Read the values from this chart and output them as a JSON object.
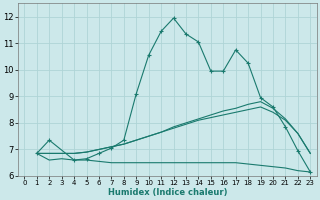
{
  "xlabel": "Humidex (Indice chaleur)",
  "xlim": [
    -0.5,
    23.5
  ],
  "ylim": [
    6.0,
    12.5
  ],
  "yticks": [
    6,
    7,
    8,
    9,
    10,
    11,
    12
  ],
  "xticks": [
    0,
    1,
    2,
    3,
    4,
    5,
    6,
    7,
    8,
    9,
    10,
    11,
    12,
    13,
    14,
    15,
    16,
    17,
    18,
    19,
    20,
    21,
    22,
    23
  ],
  "bg_color": "#cce8ea",
  "grid_color": "#afd4d6",
  "line_color": "#1a7a6e",
  "lines": [
    {
      "x": [
        1,
        2,
        4,
        5,
        6,
        7,
        8,
        9,
        10,
        11,
        12,
        13,
        14,
        15,
        16,
        17,
        18,
        19,
        20,
        21,
        22,
        23
      ],
      "y": [
        6.85,
        7.35,
        6.6,
        6.65,
        6.85,
        7.05,
        7.35,
        9.1,
        10.55,
        11.45,
        11.95,
        11.35,
        11.05,
        9.95,
        9.95,
        10.75,
        10.25,
        8.95,
        8.6,
        7.85,
        6.95,
        6.15
      ],
      "marker": "+",
      "markersize": 3,
      "linestyle": "-"
    },
    {
      "x": [
        1,
        4,
        5,
        6,
        7,
        8,
        9,
        10,
        11,
        12,
        13,
        14,
        15,
        16,
        17,
        18,
        19,
        20,
        21,
        22,
        23
      ],
      "y": [
        6.85,
        6.85,
        6.9,
        7.0,
        7.1,
        7.2,
        7.35,
        7.5,
        7.65,
        7.85,
        8.0,
        8.15,
        8.3,
        8.45,
        8.55,
        8.7,
        8.8,
        8.55,
        8.15,
        7.6,
        6.85
      ],
      "marker": null,
      "markersize": 0,
      "linestyle": "-"
    },
    {
      "x": [
        1,
        4,
        5,
        6,
        7,
        8,
        9,
        10,
        11,
        12,
        13,
        14,
        15,
        16,
        17,
        18,
        19,
        20,
        21,
        22,
        23
      ],
      "y": [
        6.85,
        6.85,
        6.9,
        7.0,
        7.1,
        7.2,
        7.35,
        7.5,
        7.65,
        7.8,
        7.95,
        8.1,
        8.2,
        8.3,
        8.4,
        8.5,
        8.6,
        8.4,
        8.1,
        7.6,
        6.85
      ],
      "marker": null,
      "markersize": 0,
      "linestyle": "-"
    },
    {
      "x": [
        1,
        2,
        3,
        4,
        5,
        6,
        7,
        8,
        9,
        10,
        11,
        12,
        13,
        14,
        15,
        16,
        17,
        18,
        19,
        20,
        21,
        22,
        23
      ],
      "y": [
        6.85,
        6.6,
        6.65,
        6.6,
        6.6,
        6.55,
        6.5,
        6.5,
        6.5,
        6.5,
        6.5,
        6.5,
        6.5,
        6.5,
        6.5,
        6.5,
        6.5,
        6.45,
        6.4,
        6.35,
        6.3,
        6.2,
        6.15
      ],
      "marker": null,
      "markersize": 0,
      "linestyle": "-"
    }
  ]
}
